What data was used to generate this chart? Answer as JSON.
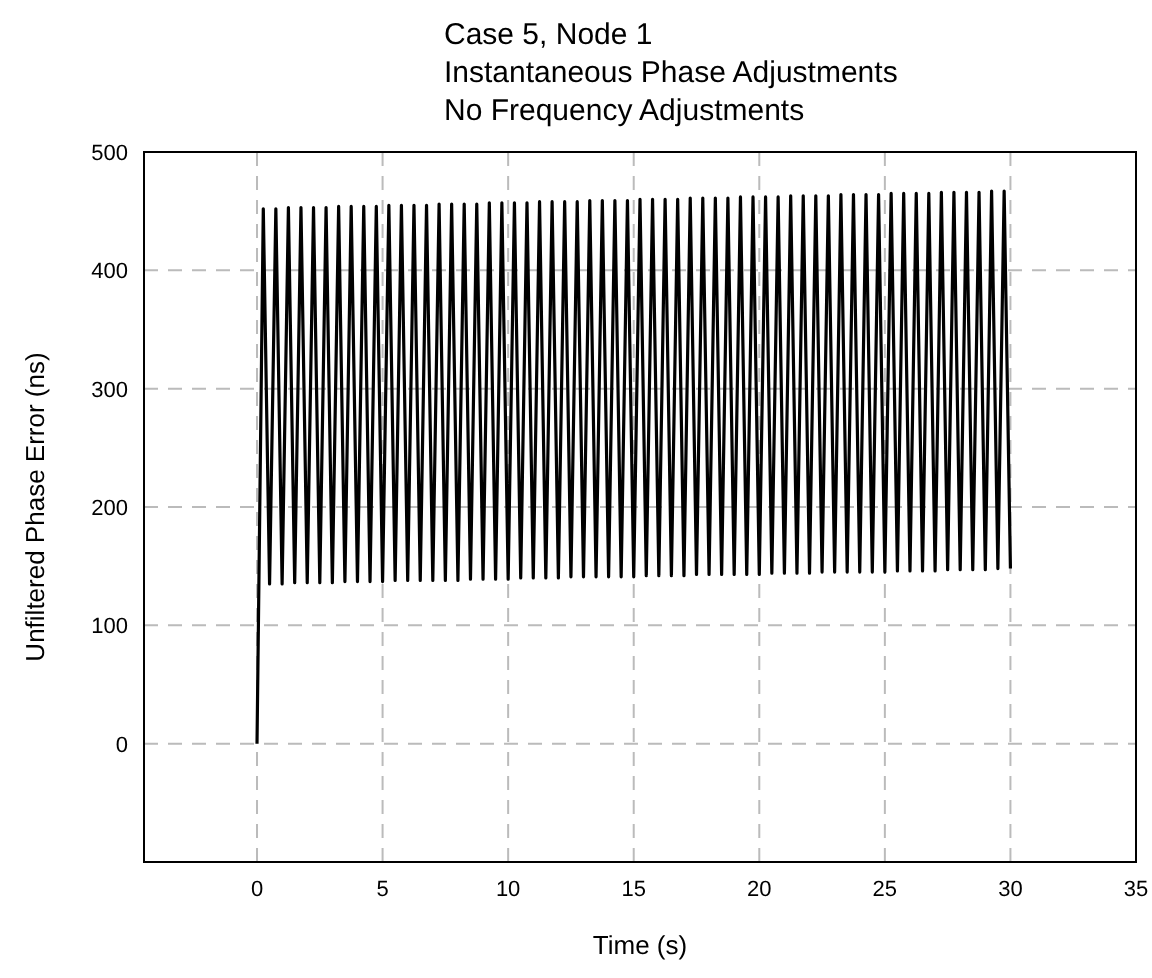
{
  "chart_data": {
    "type": "line",
    "title": "Case 5, Node 1\nInstantaneous Phase Adjustments\nNo Frequency Adjustments",
    "xlabel": "Time (s)",
    "ylabel": "Unfiltered Phase Error (ns)",
    "xlim": [
      -4.5,
      35
    ],
    "xticks": [
      0,
      5,
      10,
      15,
      20,
      25,
      30,
      35
    ],
    "ylim": [
      -100,
      500
    ],
    "yticks": [
      0,
      100,
      200,
      300,
      400,
      500
    ],
    "grid": true,
    "series": [
      {
        "color": "#000000",
        "x": [
          0,
          0.25,
          0.5,
          0.75,
          1,
          1.25,
          1.5,
          1.75,
          2,
          2.25,
          2.5,
          2.75,
          3,
          3.25,
          3.5,
          3.75,
          4,
          4.25,
          4.5,
          4.75,
          5,
          5.25,
          5.5,
          5.75,
          6,
          6.25,
          6.5,
          6.75,
          7,
          7.25,
          7.5,
          7.75,
          8,
          8.25,
          8.5,
          8.75,
          9,
          9.25,
          9.5,
          9.75,
          10,
          10.25,
          10.5,
          10.75,
          11,
          11.25,
          11.5,
          11.75,
          12,
          12.25,
          12.5,
          12.75,
          13,
          13.25,
          13.5,
          13.75,
          14,
          14.25,
          14.5,
          14.75,
          15,
          15.25,
          15.5,
          15.75,
          16,
          16.25,
          16.5,
          16.75,
          17,
          17.25,
          17.5,
          17.75,
          18,
          18.25,
          18.5,
          18.75,
          19,
          19.25,
          19.5,
          19.75,
          20,
          20.25,
          20.5,
          20.75,
          21,
          21.25,
          21.5,
          21.75,
          22,
          22.25,
          22.5,
          22.75,
          23,
          23.25,
          23.5,
          23.75,
          24,
          24.25,
          24.5,
          24.75,
          25,
          25.25,
          25.5,
          25.75,
          26,
          26.25,
          26.5,
          26.75,
          27,
          27.25,
          27.5,
          27.75,
          28,
          28.25,
          28.5,
          28.75,
          29,
          29.25,
          29.5,
          29.75,
          30
        ],
        "values": [
          0,
          452,
          135,
          452,
          135,
          453,
          136,
          453,
          136,
          453,
          136,
          453,
          136,
          454,
          137,
          454,
          137,
          454,
          137,
          454,
          137,
          455,
          138,
          455,
          138,
          455,
          138,
          455,
          138,
          456,
          138,
          456,
          138,
          456,
          139,
          456,
          139,
          457,
          139,
          457,
          139,
          457,
          140,
          457,
          140,
          458,
          140,
          458,
          140,
          458,
          141,
          458,
          141,
          459,
          141,
          459,
          141,
          459,
          141,
          459,
          141,
          460,
          142,
          460,
          142,
          460,
          142,
          460,
          142,
          461,
          143,
          461,
          143,
          461,
          143,
          461,
          143,
          462,
          143,
          462,
          143,
          462,
          144,
          462,
          144,
          463,
          144,
          463,
          144,
          463,
          145,
          463,
          145,
          464,
          145,
          464,
          145,
          464,
          145,
          464,
          145,
          465,
          146,
          465,
          146,
          465,
          146,
          465,
          146,
          466,
          147,
          466,
          147,
          466,
          147,
          466,
          147,
          467,
          148,
          467,
          148
        ]
      }
    ]
  }
}
